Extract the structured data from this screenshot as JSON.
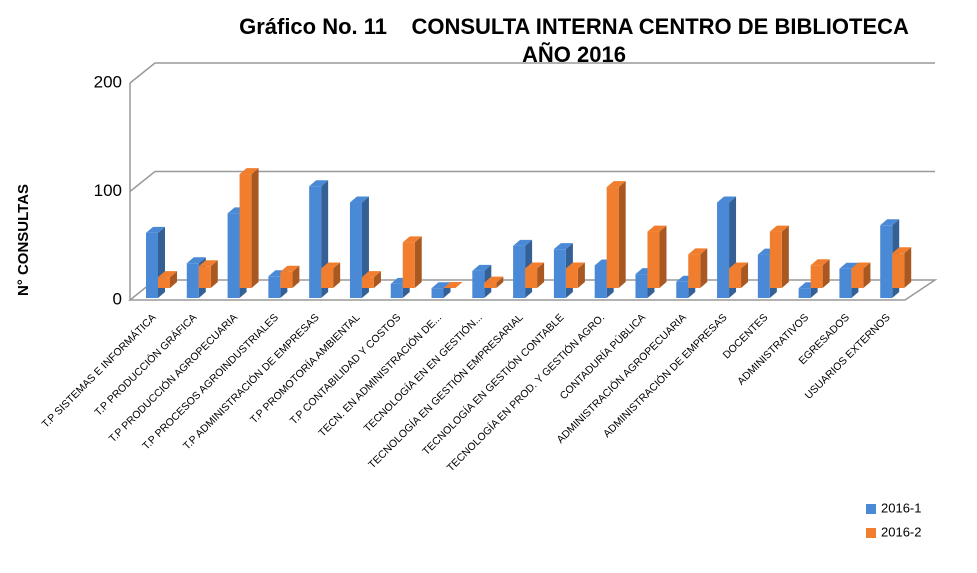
{
  "chart_data": {
    "type": "bar3d",
    "title": "Gráfico No. 11    CONSULTA INTERNA CENTRO DE BIBLIOTECA",
    "subtitle": "AÑO 2016",
    "y_label": "N° CONSULTAS",
    "categories": [
      "T.P SISTEMAS E INFORMÁTICA",
      "T.P PRODUCCIÓN GRÁFICA",
      "T.P PRODUCCIÓN AGROPECUARIA",
      "T.P PROCESOS AGROINDUSTRIALES",
      "T.P ADMINISTRACIÓN DE EMPRESAS",
      "T.P PROMOTORÍA AMBIENTAL",
      "T.P CONTABILIDAD Y COSTOS",
      "TECN. EN ADMINISTRACIÓN DE...",
      "TECNOLOGÍA EN EN GESTIÓN...",
      "TECNOLOGÍA EN GESTIÓN EMPRESARIAL",
      "TECNOLOGÍA EN GESTIÓN CONTABLE",
      "TECNOLOGÍA EN PROD. Y GESTIÓN AGRO.",
      "CONTADURÍA PÚBLICA",
      "ADMINISTRACIÓN AGROPECUARIA",
      "ADMINISTRACIÓN DE EMPRESAS",
      "DOCENTES",
      "ADMINISTRATIVOS",
      "EGRESADOS",
      "USUARIOS EXTERNOS"
    ],
    "series": [
      {
        "name": "2016-1",
        "color": "#4a89d6",
        "values": [
          60,
          32,
          78,
          20,
          103,
          88,
          13,
          9,
          25,
          48,
          45,
          30,
          22,
          15,
          88,
          40,
          9,
          27,
          67
        ]
      },
      {
        "name": "2016-2",
        "color": "#f07e2e",
        "values": [
          10,
          20,
          105,
          15,
          18,
          10,
          42,
          0,
          5,
          18,
          18,
          93,
          52,
          31,
          18,
          52,
          21,
          18,
          32
        ]
      }
    ],
    "ylim": [
      0,
      200
    ],
    "yticks": [
      0,
      100,
      200
    ],
    "grid": true,
    "legend": "bottom-right"
  }
}
